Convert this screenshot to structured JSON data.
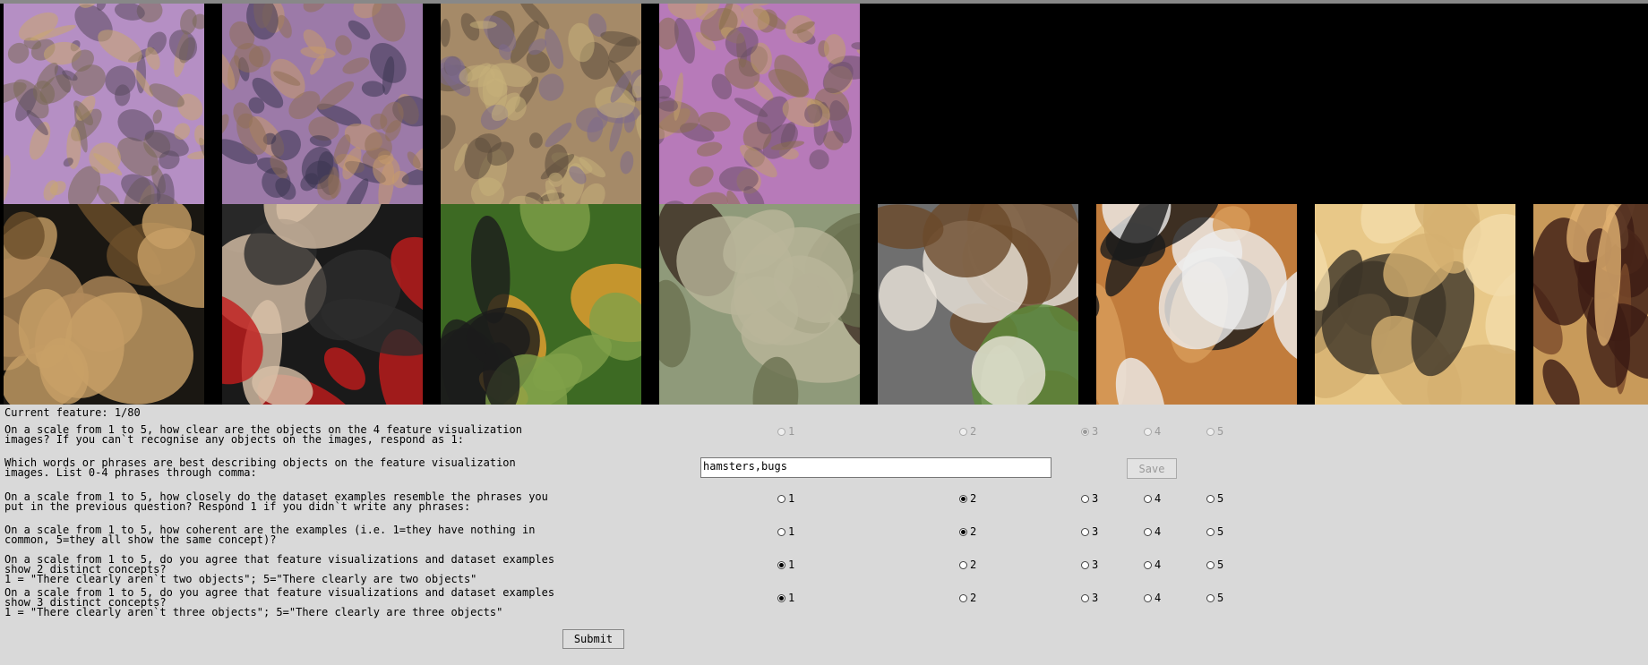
{
  "feature_counter": "Current feature: 1/80",
  "feature_visualizations": [
    {
      "name": "feature-vis-1",
      "colors": [
        "#b58fc4",
        "#7a6a55",
        "#c9a86e",
        "#5a4a5e"
      ]
    },
    {
      "name": "feature-vis-2",
      "colors": [
        "#9c7aa8",
        "#c69a6a",
        "#3b3550",
        "#8f6f55"
      ]
    },
    {
      "name": "feature-vis-3",
      "colors": [
        "#a58a68",
        "#c7b07a",
        "#7c6a8e",
        "#5d4c3c"
      ]
    },
    {
      "name": "feature-vis-4",
      "colors": [
        "#b77ab9",
        "#8a6f4a",
        "#c2a06a",
        "#6a4e66"
      ]
    }
  ],
  "dataset_examples": [
    {
      "name": "dog-terrier",
      "colors": [
        "#1a1712",
        "#c8a066",
        "#6b4f2b",
        "#b08a5a"
      ]
    },
    {
      "name": "royal-guard",
      "colors": [
        "#1a1a1a",
        "#c21c1c",
        "#2c2c2c",
        "#d8c0a8"
      ]
    },
    {
      "name": "monarch-butterfly",
      "colors": [
        "#3d6a23",
        "#e7a030",
        "#1c1c1c",
        "#7fa048"
      ]
    },
    {
      "name": "echidna",
      "colors": [
        "#8f9a7a",
        "#3b2c22",
        "#b9b59a",
        "#6a7050"
      ]
    },
    {
      "name": "dogs-yorkie",
      "colors": [
        "#6f6f6f",
        "#ece6dc",
        "#6b4a2a",
        "#5c8c3a"
      ]
    },
    {
      "name": "beetle-orange",
      "colors": [
        "#c17c3c",
        "#1b1b1b",
        "#d89c5a",
        "#eeeeee"
      ]
    },
    {
      "name": "beetle-wood",
      "colors": [
        "#e8c888",
        "#3c3428",
        "#d4b070",
        "#f2dcaa"
      ]
    },
    {
      "name": "beetle-bark",
      "colors": [
        "#c89a5a",
        "#3c1c14",
        "#e0b070",
        "#7a4a2a"
      ]
    }
  ],
  "questions": [
    {
      "text": "On a scale from 1 to 5, how clear are the objects on the 4 feature visualization\nimages? If you can`t recognise any objects on the images, respond as 1:",
      "selected": 3,
      "disabled": true
    },
    {
      "text": "Which words or phrases are best describing objects on the feature visualization\nimages. List 0-4 phrases through comma:",
      "input_value": "hamsters,bugs",
      "save_label": "Save"
    },
    {
      "text": "On a scale from 1 to 5, how closely do the dataset examples resemble the phrases you\nput in the previous question? Respond 1 if you didn`t write any phrases:",
      "selected": 2
    },
    {
      "text": "On a scale from 1 to 5, how coherent are the examples (i.e. 1=they have nothing in\ncommon, 5=they all show the same concept)?",
      "selected": 2
    },
    {
      "text": "On a scale from 1 to 5, do you agree that feature visualizations and dataset examples\nshow 2 distinct concepts?\n1 = \"There clearly aren`t two objects\"; 5=\"There clearly are two objects\"",
      "selected": 1
    },
    {
      "text": "On a scale from 1 to 5, do you agree that feature visualizations and dataset examples\nshow 3 distinct concepts?\n1 = \"There clearly aren`t three objects\"; 5=\"There clearly are three objects\"",
      "selected": 1
    }
  ],
  "scale": [
    "1",
    "2",
    "3",
    "4",
    "5"
  ],
  "submit_label": "Submit"
}
